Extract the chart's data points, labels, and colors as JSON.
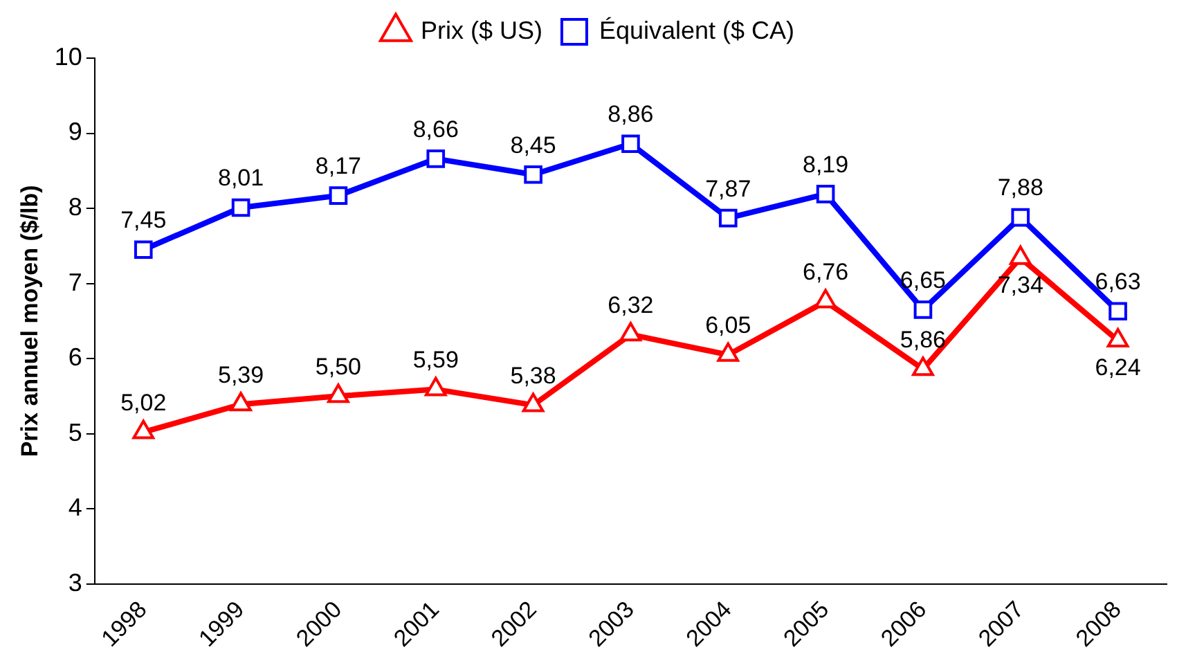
{
  "chart_data": {
    "type": "line",
    "ylabel": "Prix annuel moyen ($/lb)",
    "categories": [
      "1998",
      "1999",
      "2000",
      "2001",
      "2002",
      "2003",
      "2004",
      "2005",
      "2006",
      "2007",
      "2008"
    ],
    "series": [
      {
        "name": "Prix ($ US)",
        "color": "#ff0000",
        "marker": "triangle",
        "values": [
          5.02,
          5.39,
          5.5,
          5.59,
          5.38,
          6.32,
          6.05,
          6.76,
          5.86,
          7.34,
          6.24
        ],
        "value_labels": [
          "5,02",
          "5,39",
          "5,50",
          "5,59",
          "5,38",
          "6,32",
          "6,05",
          "6,76",
          "5,86",
          "7,34",
          "6,24"
        ]
      },
      {
        "name": "Équivalent ($ CA)",
        "color": "#0000ff",
        "marker": "square",
        "values": [
          7.45,
          8.01,
          8.17,
          8.66,
          8.45,
          8.86,
          7.87,
          8.19,
          6.65,
          7.88,
          6.63
        ],
        "value_labels": [
          "7,45",
          "8,01",
          "8,17",
          "8,66",
          "8,45",
          "8,86",
          "7,87",
          "8,19",
          "6,65",
          "7,88",
          "6,63"
        ]
      }
    ],
    "ylim": [
      3,
      10
    ],
    "yticks": [
      3,
      4,
      5,
      6,
      7,
      8,
      9,
      10
    ],
    "grid": false,
    "legend": "top"
  }
}
